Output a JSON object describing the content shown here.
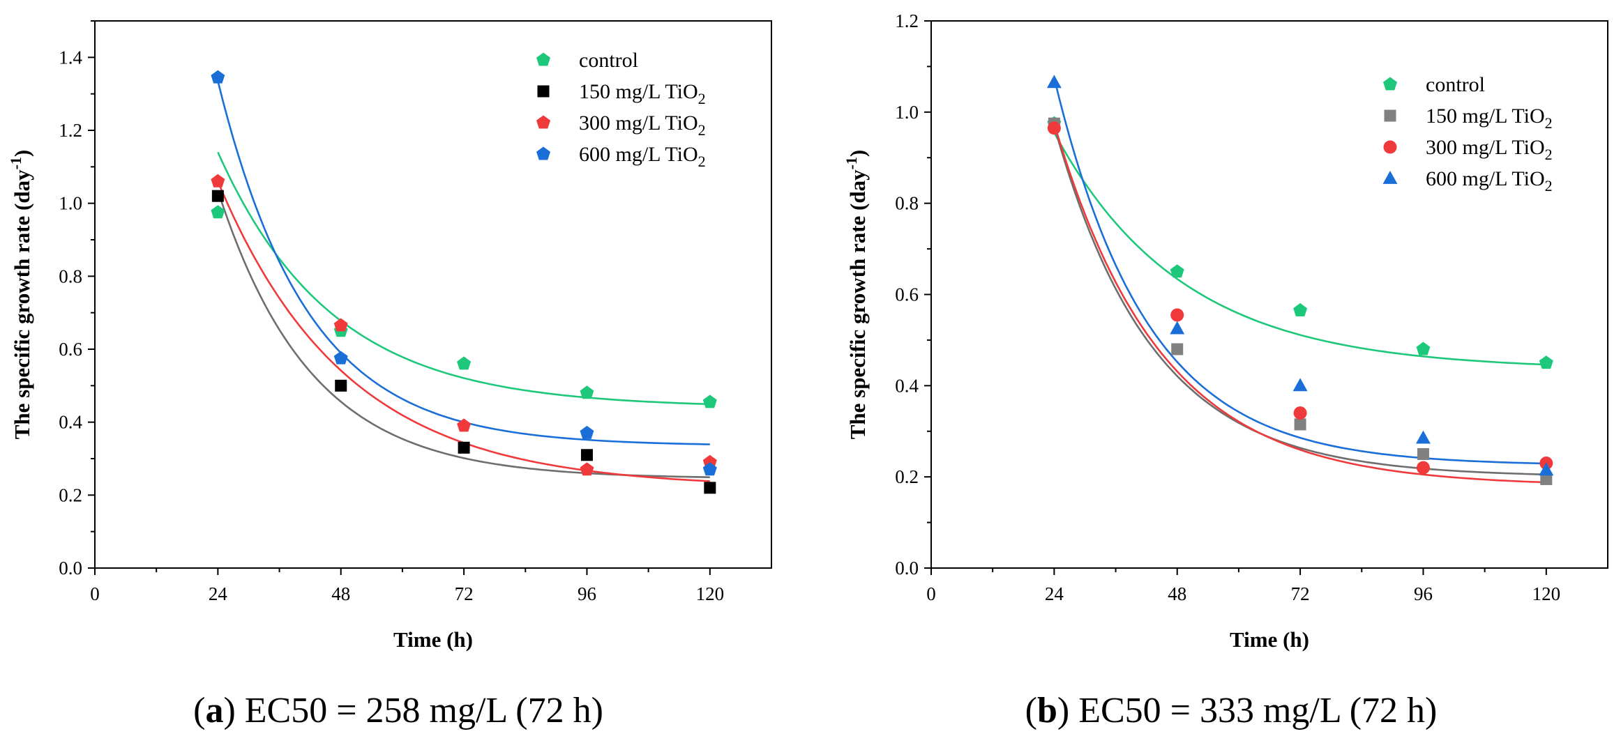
{
  "chart_data": [
    {
      "type": "scatter",
      "panel": "a",
      "caption_letter": "a",
      "caption_text": "EC50 = 258 mg/L (72 h)",
      "xlabel": "Time (h)",
      "ylabel": "The specific growth rate (day",
      "ylabel_sup": "-1",
      "xlim": [
        0,
        132
      ],
      "ylim": [
        0,
        1.5
      ],
      "xticks": [
        0,
        24,
        48,
        72,
        96,
        120
      ],
      "yticks": [
        0.0,
        0.2,
        0.4,
        0.6,
        0.8,
        1.0,
        1.2,
        1.4
      ],
      "x": [
        24,
        48,
        72,
        96,
        120
      ],
      "legend_position": "top-right",
      "series": [
        {
          "name": "control",
          "name_sub": "",
          "marker": "pentagon",
          "color": "#1ec87a",
          "values": [
            0.975,
            0.65,
            0.56,
            0.48,
            0.455
          ],
          "fit": {
            "a": 0.7,
            "k": 0.045,
            "c": 0.44
          }
        },
        {
          "name": "150 mg/L TiO",
          "name_sub": "2",
          "marker": "square",
          "color": "#000000",
          "fit_color": "#6e6e6e",
          "values": [
            1.02,
            0.5,
            0.33,
            0.31,
            0.22
          ],
          "fit": {
            "a": 0.79,
            "k": 0.055,
            "c": 0.245
          }
        },
        {
          "name": "300 mg/L TiO",
          "name_sub": "2",
          "marker": "pentagon",
          "color": "#f0393b",
          "values": [
            1.06,
            0.665,
            0.39,
            0.27,
            0.29
          ],
          "fit": {
            "a": 0.84,
            "k": 0.04,
            "c": 0.22
          }
        },
        {
          "name": "600 mg/L TiO",
          "name_sub": "2",
          "marker": "pentagon",
          "color": "#1a6ed8",
          "values": [
            1.345,
            0.575,
            null,
            0.37,
            0.27
          ],
          "fit": {
            "a": 1.0,
            "k": 0.057,
            "c": 0.335
          }
        }
      ]
    },
    {
      "type": "scatter",
      "panel": "b",
      "caption_letter": "b",
      "caption_text": "EC50 = 333 mg/L (72 h)",
      "xlabel": "Time (h)",
      "ylabel": "The specific growth rate (day",
      "ylabel_sup": "-1",
      "xlim": [
        0,
        132
      ],
      "ylim": [
        0,
        1.2
      ],
      "xticks": [
        0,
        24,
        48,
        72,
        96,
        120
      ],
      "yticks": [
        0.0,
        0.2,
        0.4,
        0.6,
        0.8,
        1.0,
        1.2
      ],
      "x": [
        24,
        48,
        72,
        96,
        120
      ],
      "legend_position": "top-right",
      "series": [
        {
          "name": "control",
          "name_sub": "",
          "marker": "pentagon",
          "color": "#1ec87a",
          "values": [
            0.975,
            0.65,
            0.565,
            0.48,
            0.45
          ],
          "fit": {
            "a": 0.52,
            "k": 0.04,
            "c": 0.435
          }
        },
        {
          "name": "150 mg/L TiO",
          "name_sub": "2",
          "marker": "square",
          "color": "#808080",
          "fit_color": "#6e6e6e",
          "values": [
            0.975,
            0.48,
            0.315,
            0.25,
            0.195
          ],
          "fit": {
            "a": 0.77,
            "k": 0.052,
            "c": 0.2
          }
        },
        {
          "name": "300 mg/L TiO",
          "name_sub": "2",
          "marker": "circle",
          "color": "#f0393b",
          "values": [
            0.965,
            0.555,
            0.34,
            0.22,
            0.23
          ],
          "fit": {
            "a": 0.795,
            "k": 0.048,
            "c": 0.18
          }
        },
        {
          "name": "600 mg/L TiO",
          "name_sub": "2",
          "marker": "triangle",
          "color": "#1a6ed8",
          "values": [
            1.065,
            0.525,
            0.4,
            0.285,
            0.215
          ],
          "fit": {
            "a": 0.85,
            "k": 0.055,
            "c": 0.225
          }
        }
      ]
    }
  ]
}
